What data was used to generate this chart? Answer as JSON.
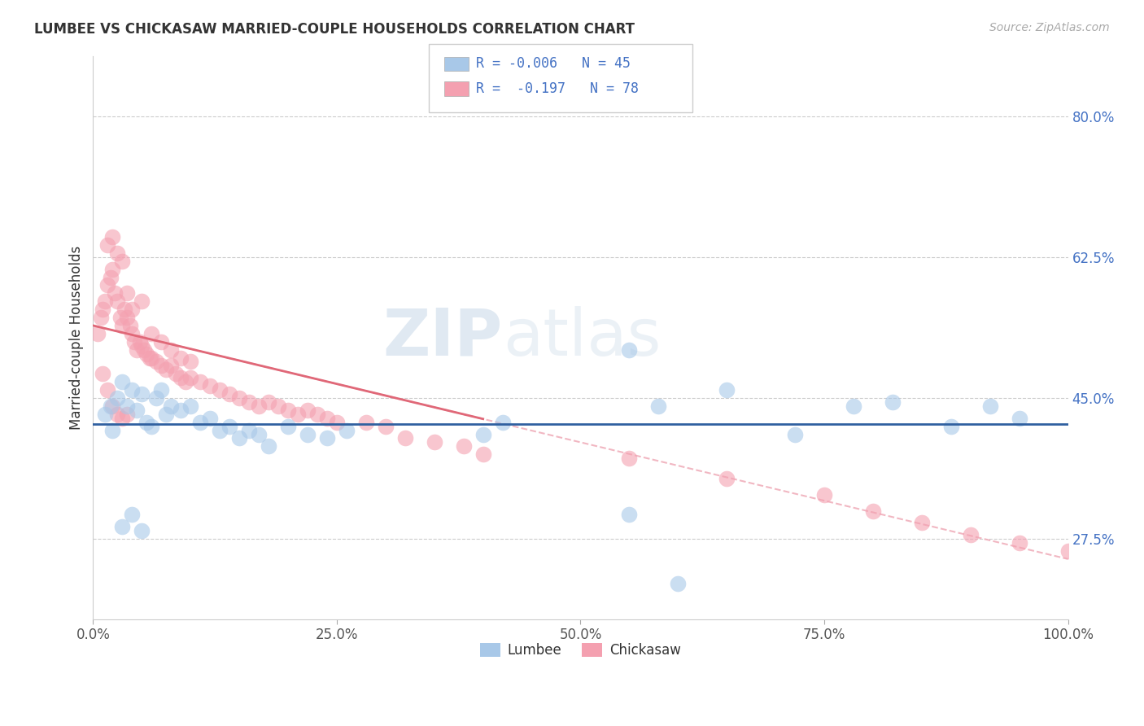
{
  "title": "LUMBEE VS CHICKASAW MARRIED-COUPLE HOUSEHOLDS CORRELATION CHART",
  "source_text": "Source: ZipAtlas.com",
  "ylabel": "Married-couple Households",
  "xlim": [
    0.0,
    100.0
  ],
  "ylim": [
    17.5,
    87.5
  ],
  "yticks": [
    27.5,
    45.0,
    62.5,
    80.0
  ],
  "xticks": [
    0.0,
    25.0,
    50.0,
    75.0,
    100.0
  ],
  "xtick_labels": [
    "0.0%",
    "25.0%",
    "50.0%",
    "75.0%",
    "100.0%"
  ],
  "ytick_labels": [
    "27.5%",
    "45.0%",
    "62.5%",
    "80.0%"
  ],
  "blue_color": "#a8c8e8",
  "pink_color": "#f4a0b0",
  "blue_line_color": "#3060a0",
  "pink_line_color": "#e06878",
  "pink_dash_color": "#f0b0bc",
  "grid_color": "#cccccc",
  "background_color": "#ffffff",
  "watermark": "ZIPatlas",
  "lumbee_x": [
    1.2,
    1.8,
    2.0,
    2.5,
    3.0,
    3.5,
    4.0,
    4.5,
    5.0,
    5.5,
    6.0,
    6.5,
    7.0,
    7.5,
    8.0,
    9.0,
    10.0,
    11.0,
    12.0,
    13.0,
    14.0,
    15.0,
    16.0,
    17.0,
    18.0,
    20.0,
    22.0,
    24.0,
    26.0,
    40.0,
    42.0,
    55.0,
    58.0,
    65.0,
    72.0,
    78.0,
    82.0,
    88.0,
    92.0,
    95.0,
    3.0,
    4.0,
    5.0,
    55.0,
    60.0
  ],
  "lumbee_y": [
    43.0,
    44.0,
    41.0,
    45.0,
    47.0,
    44.0,
    46.0,
    43.5,
    45.5,
    42.0,
    41.5,
    45.0,
    46.0,
    43.0,
    44.0,
    43.5,
    44.0,
    42.0,
    42.5,
    41.0,
    41.5,
    40.0,
    41.0,
    40.5,
    39.0,
    41.5,
    40.5,
    40.0,
    41.0,
    40.5,
    42.0,
    51.0,
    44.0,
    46.0,
    40.5,
    44.0,
    44.5,
    41.5,
    44.0,
    42.5,
    29.0,
    30.5,
    28.5,
    30.5,
    22.0
  ],
  "chickasaw_x": [
    0.5,
    0.8,
    1.0,
    1.2,
    1.5,
    1.8,
    2.0,
    2.2,
    2.5,
    2.8,
    3.0,
    3.2,
    3.5,
    3.8,
    4.0,
    4.2,
    4.5,
    4.8,
    5.0,
    5.2,
    5.5,
    5.8,
    6.0,
    6.5,
    7.0,
    7.5,
    8.0,
    8.5,
    9.0,
    9.5,
    10.0,
    11.0,
    12.0,
    13.0,
    14.0,
    15.0,
    16.0,
    17.0,
    18.0,
    19.0,
    20.0,
    21.0,
    22.0,
    23.0,
    24.0,
    25.0,
    1.5,
    2.0,
    2.5,
    3.0,
    3.5,
    4.0,
    5.0,
    6.0,
    7.0,
    8.0,
    9.0,
    10.0,
    1.0,
    1.5,
    2.0,
    2.5,
    3.0,
    3.5,
    28.0,
    30.0,
    32.0,
    35.0,
    38.0,
    40.0,
    55.0,
    65.0,
    75.0,
    80.0,
    85.0,
    90.0,
    95.0,
    100.0
  ],
  "chickasaw_y": [
    53.0,
    55.0,
    56.0,
    57.0,
    59.0,
    60.0,
    61.0,
    58.0,
    57.0,
    55.0,
    54.0,
    56.0,
    55.0,
    54.0,
    53.0,
    52.0,
    51.0,
    52.0,
    51.5,
    51.0,
    50.5,
    50.0,
    50.0,
    49.5,
    49.0,
    48.5,
    49.0,
    48.0,
    47.5,
    47.0,
    47.5,
    47.0,
    46.5,
    46.0,
    45.5,
    45.0,
    44.5,
    44.0,
    44.5,
    44.0,
    43.5,
    43.0,
    43.5,
    43.0,
    42.5,
    42.0,
    64.0,
    65.0,
    63.0,
    62.0,
    58.0,
    56.0,
    57.0,
    53.0,
    52.0,
    51.0,
    50.0,
    49.5,
    48.0,
    46.0,
    44.0,
    43.0,
    42.5,
    43.0,
    42.0,
    41.5,
    40.0,
    39.5,
    39.0,
    38.0,
    37.5,
    35.0,
    33.0,
    31.0,
    29.5,
    28.0,
    27.0,
    26.0
  ],
  "pink_trend_x0": 0.0,
  "pink_trend_y0": 54.0,
  "pink_trend_x1": 100.0,
  "pink_trend_y1": 25.0,
  "blue_trend_y": 41.8
}
